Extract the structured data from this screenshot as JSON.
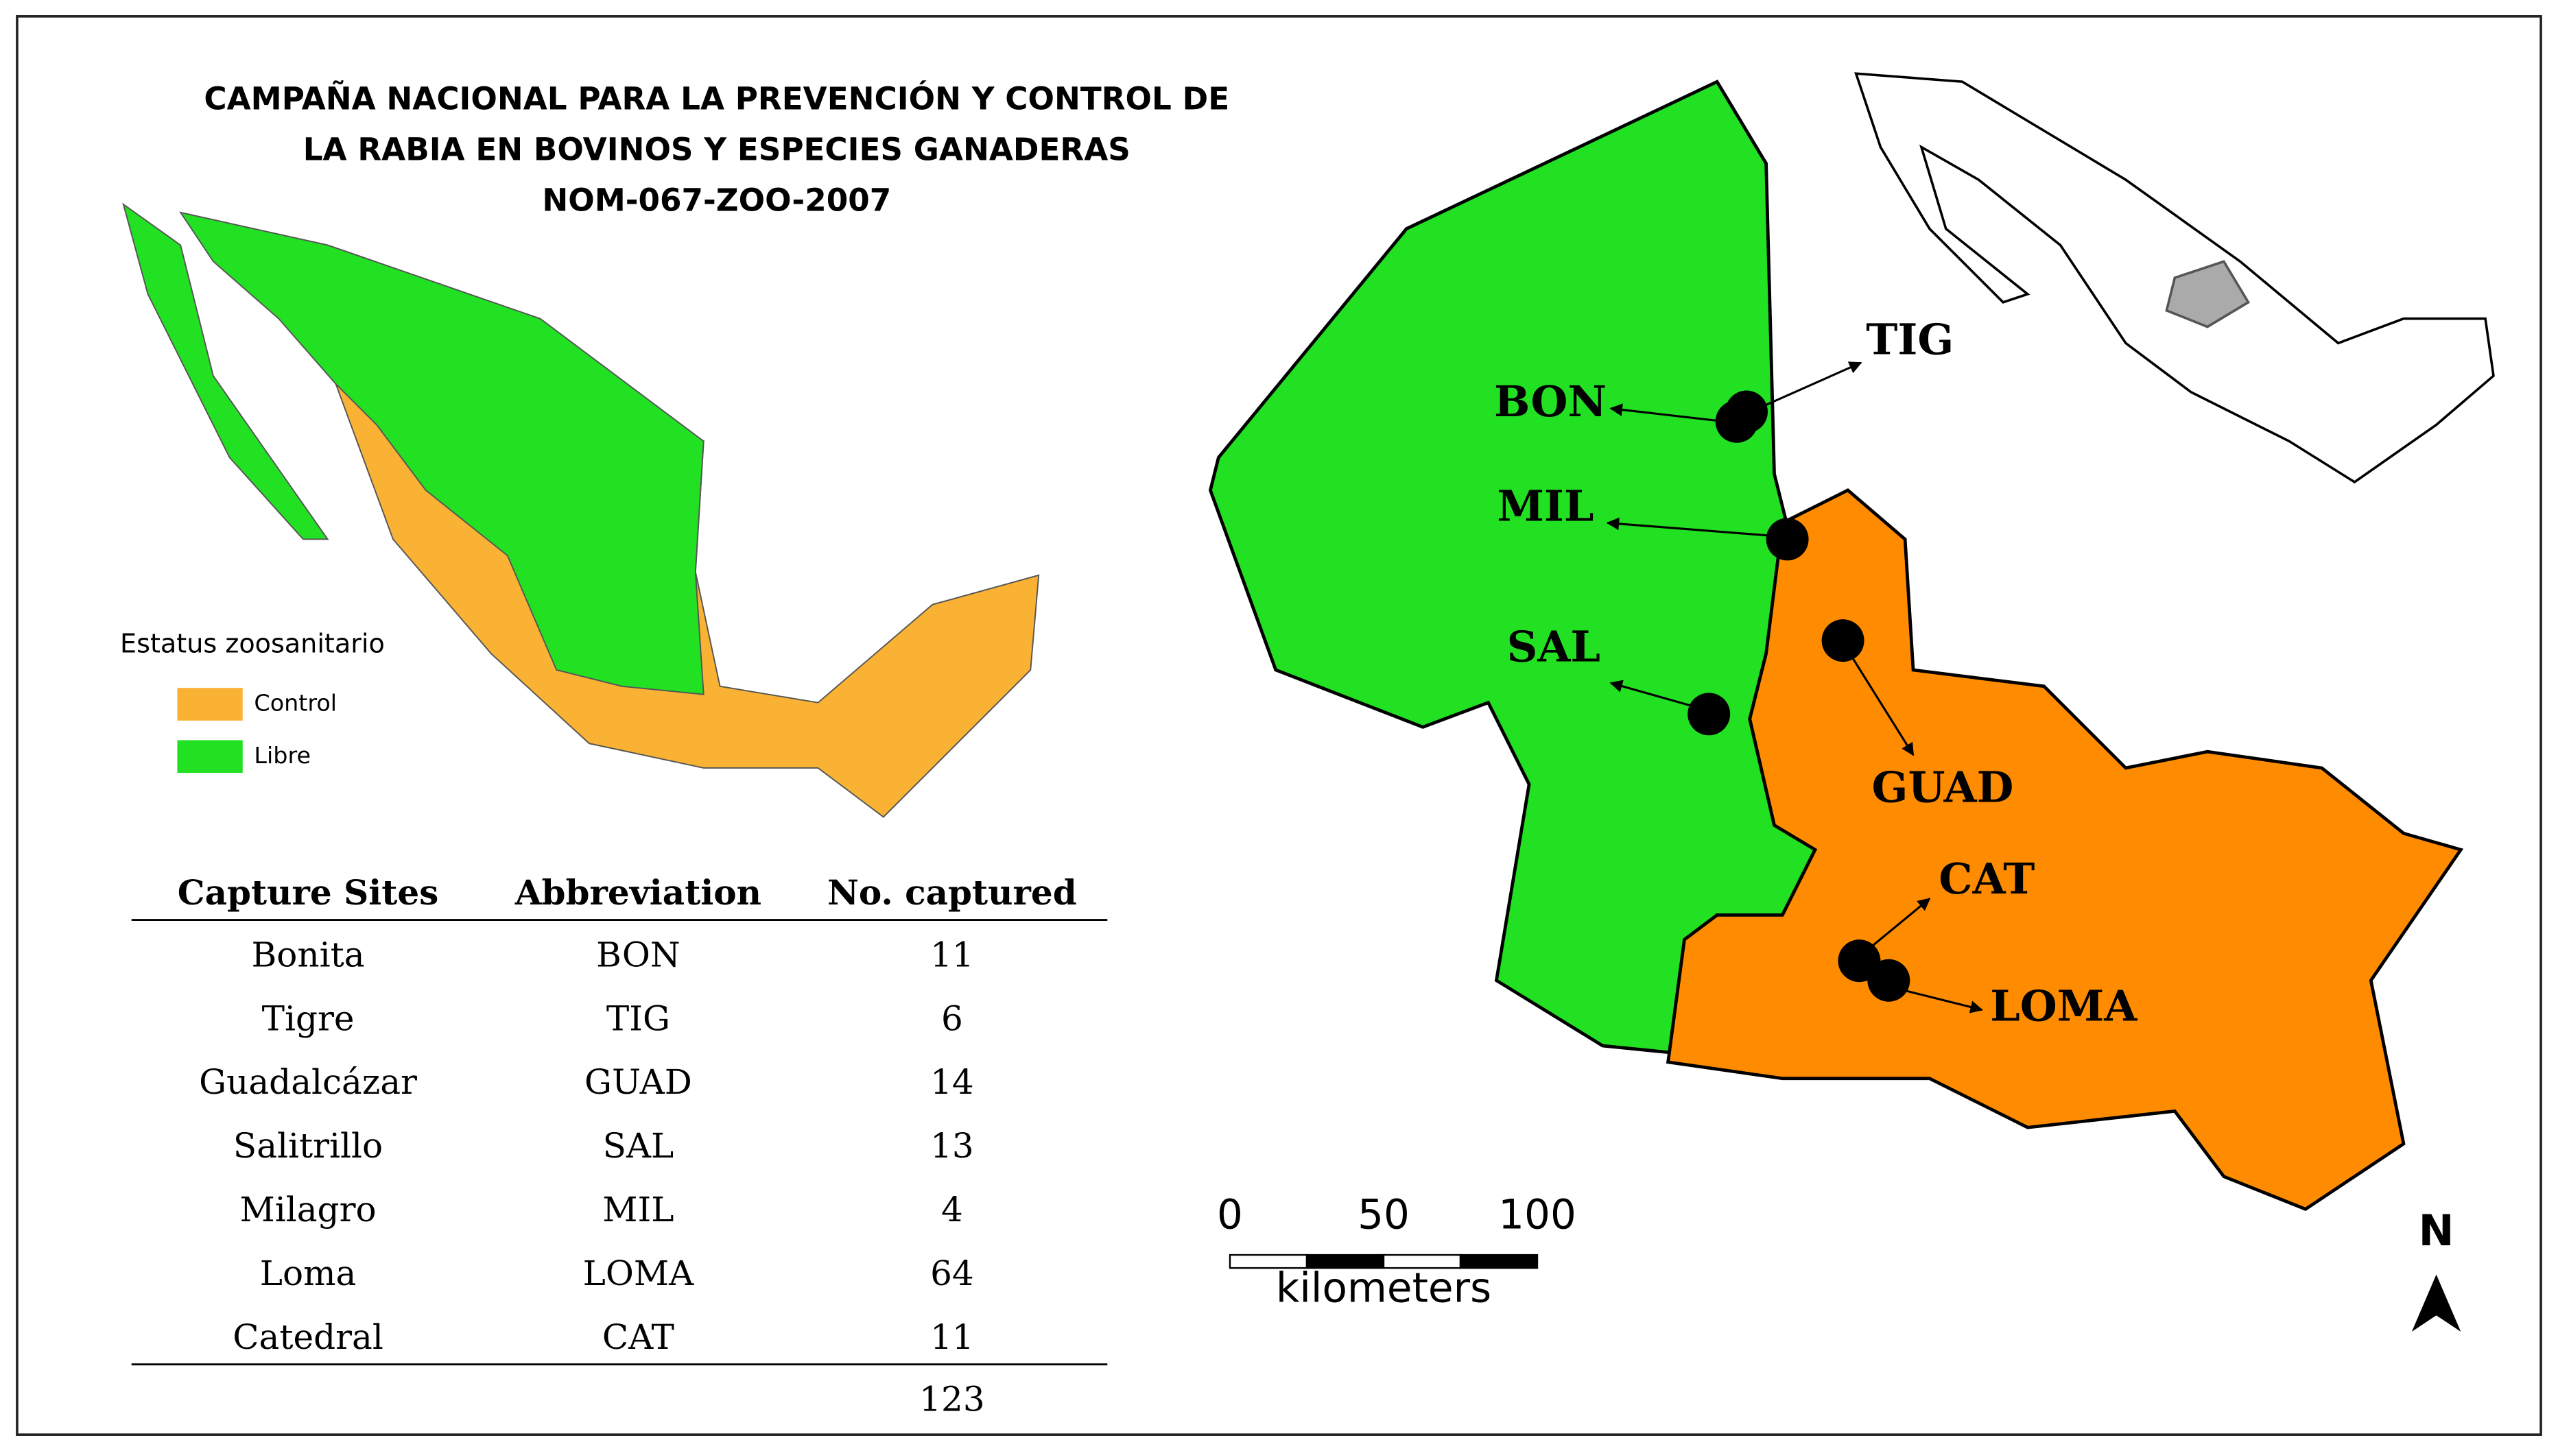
{
  "title": [
    "CAMPAÑA NACIONAL PARA LA PREVENCIÓN Y CONTROL DE",
    "LA RABIA EN BOVINOS Y ESPECIES GANADERAS",
    "NOM-067-ZOO-2007"
  ],
  "legend": {
    "title": "Estatus zoosanitario",
    "items": [
      {
        "label": "Control",
        "color": "#f9b233"
      },
      {
        "label": "Libre",
        "color": "#22e022"
      }
    ]
  },
  "table": {
    "header": [
      "Capture Sites",
      "Abbreviation",
      "No. captured"
    ],
    "rows": [
      [
        "Bonita",
        "BON",
        11
      ],
      [
        "Tigre",
        "TIG",
        6
      ],
      [
        "Guadalcázar",
        "GUAD",
        14
      ],
      [
        "Salitrillo",
        "SAL",
        13
      ],
      [
        "Milagro",
        "MIL",
        4
      ],
      [
        "Loma",
        "LOMA",
        64
      ],
      [
        "Catedral",
        "CAT",
        11
      ]
    ],
    "total": 123
  },
  "sites": [
    "TIG",
    "BON",
    "MIL",
    "SAL",
    "GUAD",
    "CAT",
    "LOMA"
  ],
  "scale_bar": {
    "ticks": [
      0,
      50,
      100
    ],
    "unit": "kilometers"
  },
  "north": "N"
}
